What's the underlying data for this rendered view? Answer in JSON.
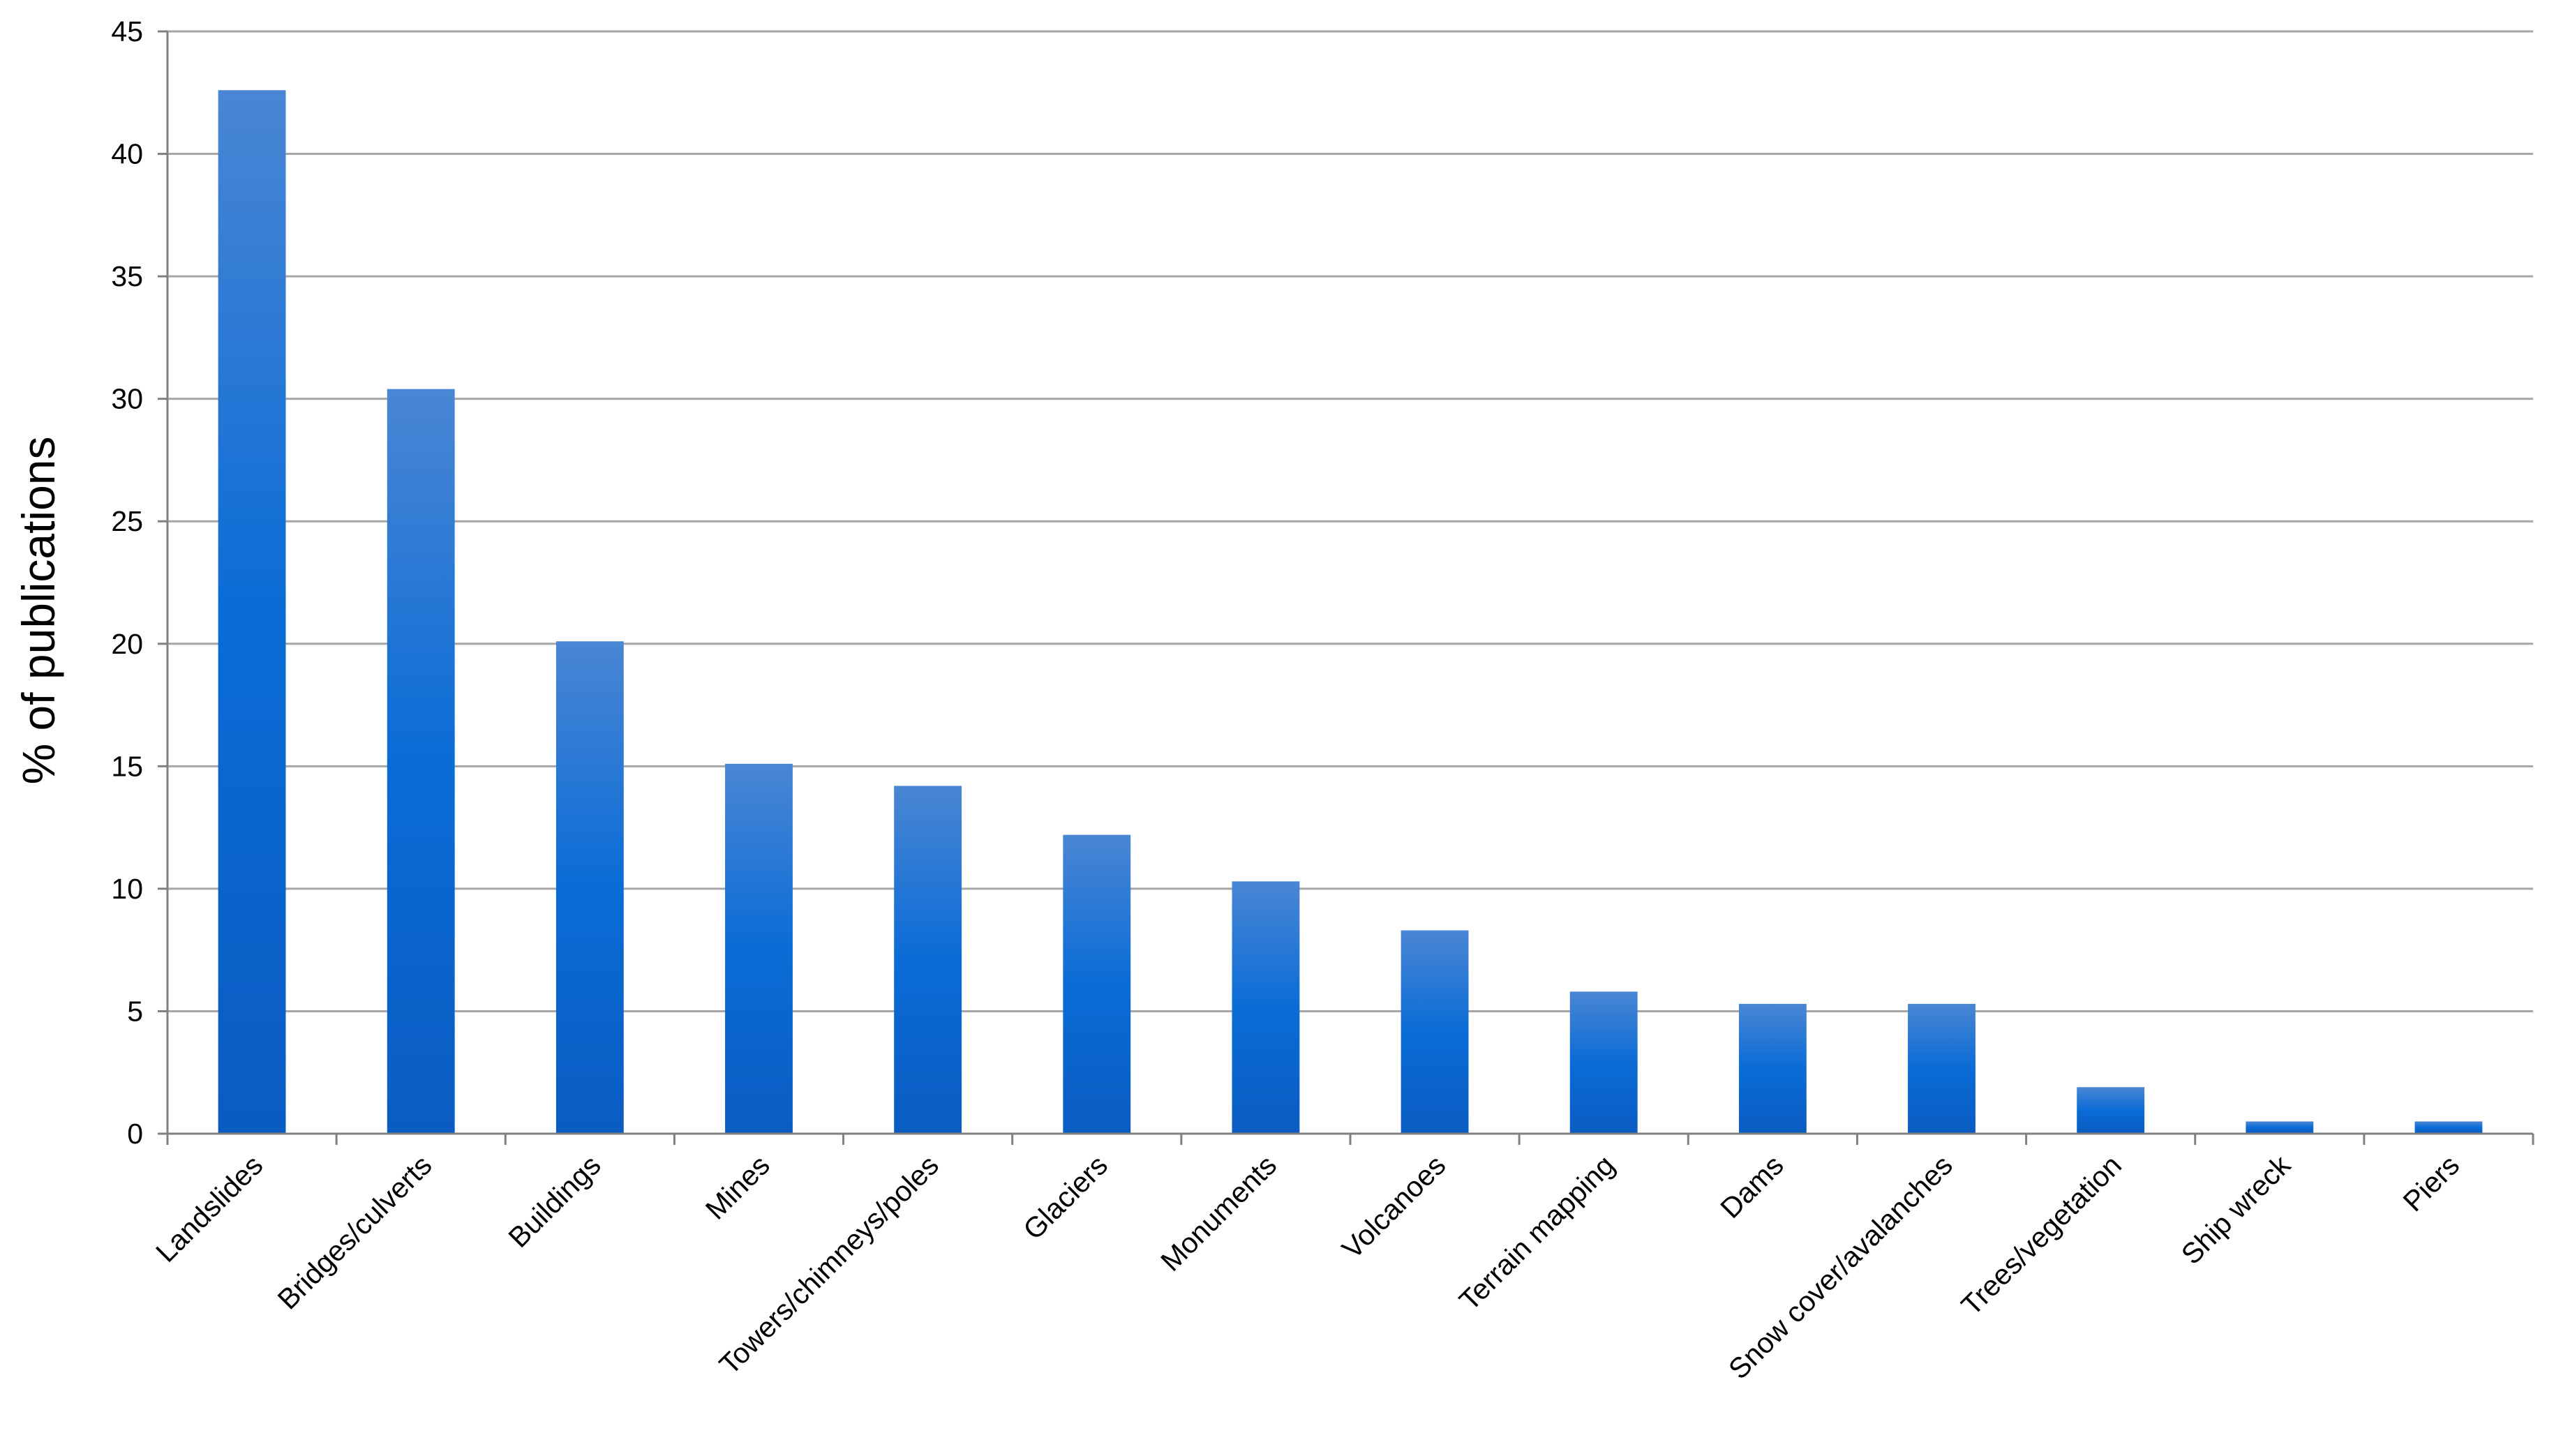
{
  "chart_data": {
    "type": "bar",
    "title": "",
    "xlabel": "",
    "ylabel": "% of publications",
    "ylim": [
      0,
      45
    ],
    "yticks": [
      0,
      5,
      10,
      15,
      20,
      25,
      30,
      35,
      40,
      45
    ],
    "grid": true,
    "legend": "none",
    "bar_color_top": "#4a86d4",
    "bar_color_mid": "#0a6cd6",
    "bar_color_bottom": "#0a5cc2",
    "categories": [
      "Landslides",
      "Bridges/culverts",
      "Buildings",
      "Mines",
      "Towers/chimneys/poles",
      "Glaciers",
      "Monuments",
      "Volcanoes",
      "Terrain mapping",
      "Dams",
      "Snow cover/avalanches",
      "Trees/vegetation",
      "Ship wreck",
      "Piers"
    ],
    "values": [
      42.6,
      30.4,
      20.1,
      15.1,
      14.2,
      12.2,
      10.3,
      8.3,
      5.8,
      5.3,
      5.3,
      1.9,
      0.5,
      0.5
    ]
  }
}
